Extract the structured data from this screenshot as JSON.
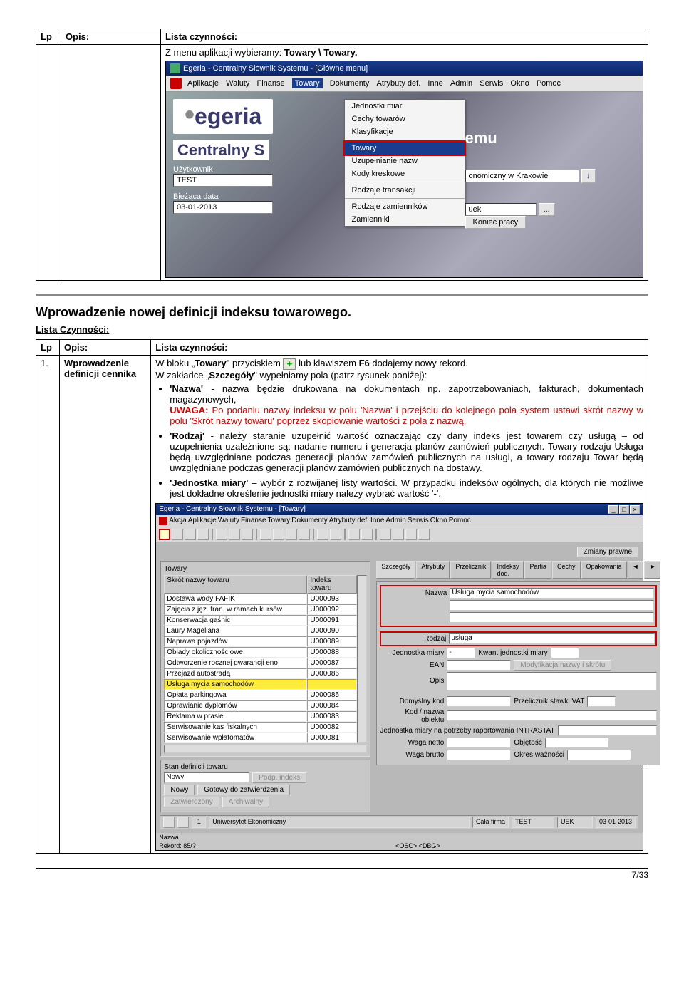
{
  "topTable": {
    "headers": {
      "lp": "Lp",
      "opis": "Opis:",
      "lista": "Lista czynności:"
    },
    "rowText": "Z menu aplikacji wybieramy: ",
    "rowBold": "Towary \\ Towary."
  },
  "screenshot1": {
    "title": "Egeria - Centralny Słownik Systemu - [Główne menu]",
    "menuItems": [
      "Aplikacje",
      "Waluty",
      "Finanse",
      "Towary",
      "Dokumenty",
      "Atrybuty def.",
      "Inne",
      "Admin",
      "Serwis",
      "Okno",
      "Pomoc"
    ],
    "dropdown": {
      "items1": [
        "Jednostki miar",
        "Cechy towarów",
        "Klasyfikacje"
      ],
      "highlighted": "Towary",
      "items2": [
        "Uzupełnianie nazw",
        "Kody kreskowe"
      ],
      "items3": [
        "Rodzaje transakcji"
      ],
      "items4": [
        "Rodzaje zamienników",
        "Zamienniki"
      ]
    },
    "logo": "egeria",
    "subtitlePrefix": "Centralny S",
    "subtitleSuffix": "emu",
    "userLabel": "Użytkownik",
    "userValue": "TEST",
    "rightText": "onomiczny w Krakowie",
    "dateLabel": "Bieżąca data",
    "dateValue": "03-01-2013",
    "uekValue": "uek",
    "endBtn": "Koniec pracy"
  },
  "sectionTitle": "Wprowadzenie nowej definicji indeksu towarowego.",
  "listHeading": "Lista Czynności:",
  "table2": {
    "headers": {
      "lp": "Lp",
      "opis": "Opis:",
      "lista": "Lista czynności:"
    },
    "lp": "1.",
    "opis": "Wprowadzenie definicji cennika",
    "intro1a": "W bloku „",
    "intro1b": "Towary",
    "intro1c": "\" przyciskiem ",
    "intro1d": " lub klawiszem ",
    "intro1e": "F6",
    "intro1f": " dodajemy nowy rekord.",
    "intro2a": "W zakładce „",
    "intro2b": "Szczegóły",
    "intro2c": "\" wypełniamy pola (patrz rysunek poniżej):",
    "bullets": [
      {
        "lead": "'Nazwa'",
        "text": " - nazwa będzie drukowana na dokumentach np. zapotrzebowaniach, fakturach, dokumentach magazynowych,",
        "uwagaLabel": "UWAGA:",
        "uwaga": " Po podaniu nazwy indeksu w polu 'Nazwa' i przejściu do kolejnego pola system ustawi skrót nazwy w polu 'Skrót nazwy towaru' poprzez skopiowanie wartości z pola z nazwą."
      },
      {
        "lead": "'Rodzaj'",
        "text": " - należy staranie uzupełnić wartość oznaczając czy dany indeks jest towarem czy usługą – od uzupełnienia uzależnione są: nadanie numeru i generacja planów zamówień publicznych. Towary rodzaju Usługa będą uwzględniane podczas generacji planów zamówień publicznych na usługi, a towary rodzaju Towar będą uwzględniane podczas generacji planów zamówień publicznych na dostawy."
      },
      {
        "lead": "'Jednostka miary'",
        "text": " – wybór z rozwijanej listy wartości. W przypadku indeksów ogólnych, dla których nie możliwe jest dokładne określenie jednostki miary należy wybrać wartość '-'."
      }
    ]
  },
  "screenshot2": {
    "title": "Egeria - Centralny Słownik Systemu - [Towary]",
    "menu": [
      "Akcja",
      "Aplikacje",
      "Waluty",
      "Finanse",
      "Towary",
      "Dokumenty",
      "Atrybuty def.",
      "Inne",
      "Admin",
      "Serwis",
      "Okno",
      "Pomoc"
    ],
    "btnZmiany": "Zmiany prawne",
    "panelTitle": "Towary",
    "listCols": {
      "a": "Skrót nazwy towaru",
      "b": "Indeks towaru"
    },
    "rows": [
      {
        "a": "Dostawa wody FAFIK",
        "b": "U000093"
      },
      {
        "a": "Zajęcia z jęz. fran. w ramach kursów",
        "b": "U000092"
      },
      {
        "a": "Konserwacja gaśnic",
        "b": "U000091"
      },
      {
        "a": "Laury Magellana",
        "b": "U000090"
      },
      {
        "a": "Naprawa pojazdów",
        "b": "U000089"
      },
      {
        "a": "Obiady okolicznościowe",
        "b": "U000088"
      },
      {
        "a": "Odtworzenie rocznej gwarancji eno",
        "b": "U000087"
      },
      {
        "a": "Przejazd autostradą",
        "b": "U000086"
      },
      {
        "a": "Usługa mycia samochodów",
        "b": "",
        "hl": true
      },
      {
        "a": "Opłata parkingowa",
        "b": "U000085"
      },
      {
        "a": "Oprawianie dyplomów",
        "b": "U000084"
      },
      {
        "a": "Reklama w prasie",
        "b": "U000083"
      },
      {
        "a": "Serwisowanie kas fiskalnych",
        "b": "U000082"
      },
      {
        "a": "Serwisowanie wpłatomatów",
        "b": "U000081"
      }
    ],
    "tabs": [
      "Szczegóły",
      "Atrybuty",
      "Przelicznik",
      "Indeksy dod.",
      "Partia",
      "Cechy",
      "Opakowania"
    ],
    "formLabels": {
      "nazwa": "Nazwa",
      "nazwaVal": "Usługa mycia samochodów",
      "rodzaj": "Rodzaj",
      "rodzajVal": "usługa",
      "jm": "Jednostka miary",
      "jmVal": "-",
      "kwant": "Kwant jednostki miary",
      "ean": "EAN",
      "modBtn": "Modyfikacja nazwy i skrótu",
      "opis": "Opis",
      "domKod": "Domyślny kod",
      "vat": "Przelicznik stawki VAT",
      "kodObj": "Kod / nazwa obiektu",
      "intrastat": "Jednostka miary na potrzeby raportowania INTRASTAT",
      "wagaN": "Waga netto",
      "wagaB": "Waga brutto",
      "obj": "Objętość",
      "okres": "Okres ważności"
    },
    "bottomLeft": {
      "stan": "Stan definicji towaru",
      "stanVal": "Nowy",
      "podp": "Podp. indeks",
      "nowy": "Nowy",
      "gotowy": "Gotowy do zatwierdzenia",
      "zatw": "Zatwierdzony",
      "arch": "Archiwalny"
    },
    "status": {
      "one": "1",
      "org": "Uniwersytet Ekonomiczny",
      "firma": "Cała firma",
      "user": "TEST",
      "uek": "UEK",
      "date": "03-01-2013"
    },
    "footer": {
      "nazwa": "Nazwa",
      "rekord": "Rekord: 85/?",
      "osc": "<OSC> <DBG>"
    }
  },
  "pageNum": "7/33",
  "colors": {
    "redHighlight": "#c00",
    "titlebarBg": "#1a3c8c",
    "yellowHl": "#ffeb3b"
  }
}
